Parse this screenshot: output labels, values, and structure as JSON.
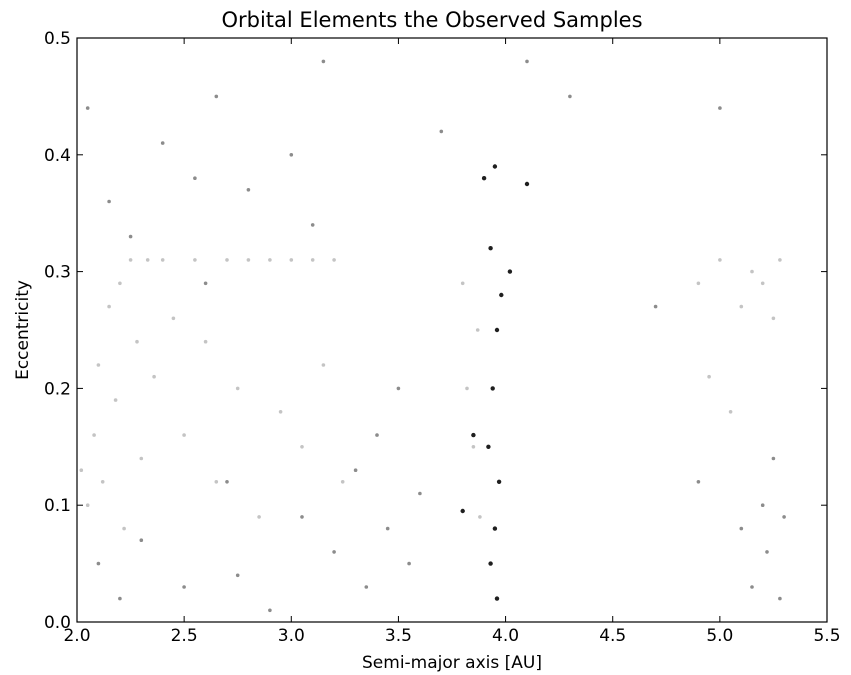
{
  "chart_data": {
    "type": "scatter",
    "title": "Orbital Elements the Observed Samples",
    "xlabel": "Semi-major axis [AU]",
    "ylabel": "Eccentricity",
    "xlim": [
      2.0,
      5.5
    ],
    "ylim": [
      0.0,
      0.5
    ],
    "xticks": [
      "2.0",
      "2.5",
      "3.0",
      "3.5",
      "4.0",
      "4.5",
      "5.0",
      "5.5"
    ],
    "yticks": [
      "0.0",
      "0.1",
      "0.2",
      "0.3",
      "0.4",
      "0.5"
    ],
    "grid": false,
    "legend": "none",
    "series": [
      {
        "color": "#c4c4c4",
        "points": [
          [
            2.02,
            0.13
          ],
          [
            2.05,
            0.1
          ],
          [
            2.08,
            0.16
          ],
          [
            2.1,
            0.22
          ],
          [
            2.12,
            0.12
          ],
          [
            2.15,
            0.27
          ],
          [
            2.18,
            0.19
          ],
          [
            2.2,
            0.29
          ],
          [
            2.22,
            0.08
          ],
          [
            2.25,
            0.31
          ],
          [
            2.28,
            0.24
          ],
          [
            2.3,
            0.14
          ],
          [
            2.33,
            0.31
          ],
          [
            2.36,
            0.21
          ],
          [
            2.4,
            0.31
          ],
          [
            2.45,
            0.26
          ],
          [
            2.5,
            0.16
          ],
          [
            2.55,
            0.31
          ],
          [
            2.6,
            0.24
          ],
          [
            2.65,
            0.12
          ],
          [
            2.7,
            0.31
          ],
          [
            2.75,
            0.2
          ],
          [
            2.8,
            0.31
          ],
          [
            2.85,
            0.09
          ],
          [
            2.9,
            0.31
          ],
          [
            2.95,
            0.18
          ],
          [
            3.0,
            0.31
          ],
          [
            3.05,
            0.15
          ],
          [
            3.1,
            0.31
          ],
          [
            3.15,
            0.22
          ],
          [
            3.2,
            0.31
          ],
          [
            3.24,
            0.12
          ],
          [
            3.8,
            0.29
          ],
          [
            3.82,
            0.2
          ],
          [
            3.85,
            0.15
          ],
          [
            3.87,
            0.25
          ],
          [
            3.88,
            0.09
          ],
          [
            4.9,
            0.29
          ],
          [
            4.95,
            0.21
          ],
          [
            5.0,
            0.31
          ],
          [
            5.05,
            0.18
          ],
          [
            5.1,
            0.27
          ],
          [
            5.15,
            0.3
          ],
          [
            5.2,
            0.29
          ],
          [
            5.25,
            0.26
          ],
          [
            5.28,
            0.31
          ]
        ]
      },
      {
        "color": "#8c8c8c",
        "points": [
          [
            2.05,
            0.44
          ],
          [
            2.1,
            0.05
          ],
          [
            2.15,
            0.36
          ],
          [
            2.2,
            0.02
          ],
          [
            2.25,
            0.33
          ],
          [
            2.3,
            0.07
          ],
          [
            2.4,
            0.41
          ],
          [
            2.5,
            0.03
          ],
          [
            2.55,
            0.38
          ],
          [
            2.6,
            0.29
          ],
          [
            2.65,
            0.45
          ],
          [
            2.7,
            0.12
          ],
          [
            2.75,
            0.04
          ],
          [
            2.8,
            0.37
          ],
          [
            2.9,
            0.01
          ],
          [
            3.0,
            0.4
          ],
          [
            3.05,
            0.09
          ],
          [
            3.1,
            0.34
          ],
          [
            3.15,
            0.48
          ],
          [
            3.2,
            0.06
          ],
          [
            3.3,
            0.13
          ],
          [
            3.35,
            0.03
          ],
          [
            3.4,
            0.16
          ],
          [
            3.45,
            0.08
          ],
          [
            3.5,
            0.2
          ],
          [
            3.55,
            0.05
          ],
          [
            3.6,
            0.11
          ],
          [
            3.7,
            0.42
          ],
          [
            4.1,
            0.48
          ],
          [
            4.3,
            0.45
          ],
          [
            4.7,
            0.27
          ],
          [
            4.9,
            0.12
          ],
          [
            5.0,
            0.44
          ],
          [
            5.1,
            0.08
          ],
          [
            5.15,
            0.03
          ],
          [
            5.2,
            0.1
          ],
          [
            5.22,
            0.06
          ],
          [
            5.25,
            0.14
          ],
          [
            5.28,
            0.02
          ],
          [
            5.3,
            0.09
          ]
        ]
      },
      {
        "color": "#1f1f1f",
        "points": [
          [
            3.9,
            0.38
          ],
          [
            3.93,
            0.32
          ],
          [
            3.95,
            0.39
          ],
          [
            3.96,
            0.25
          ],
          [
            3.94,
            0.2
          ],
          [
            3.92,
            0.15
          ],
          [
            3.97,
            0.12
          ],
          [
            3.95,
            0.08
          ],
          [
            3.93,
            0.05
          ],
          [
            3.96,
            0.02
          ],
          [
            3.98,
            0.28
          ],
          [
            4.02,
            0.3
          ],
          [
            4.1,
            0.375
          ],
          [
            3.85,
            0.16
          ],
          [
            3.8,
            0.095
          ]
        ]
      }
    ]
  }
}
